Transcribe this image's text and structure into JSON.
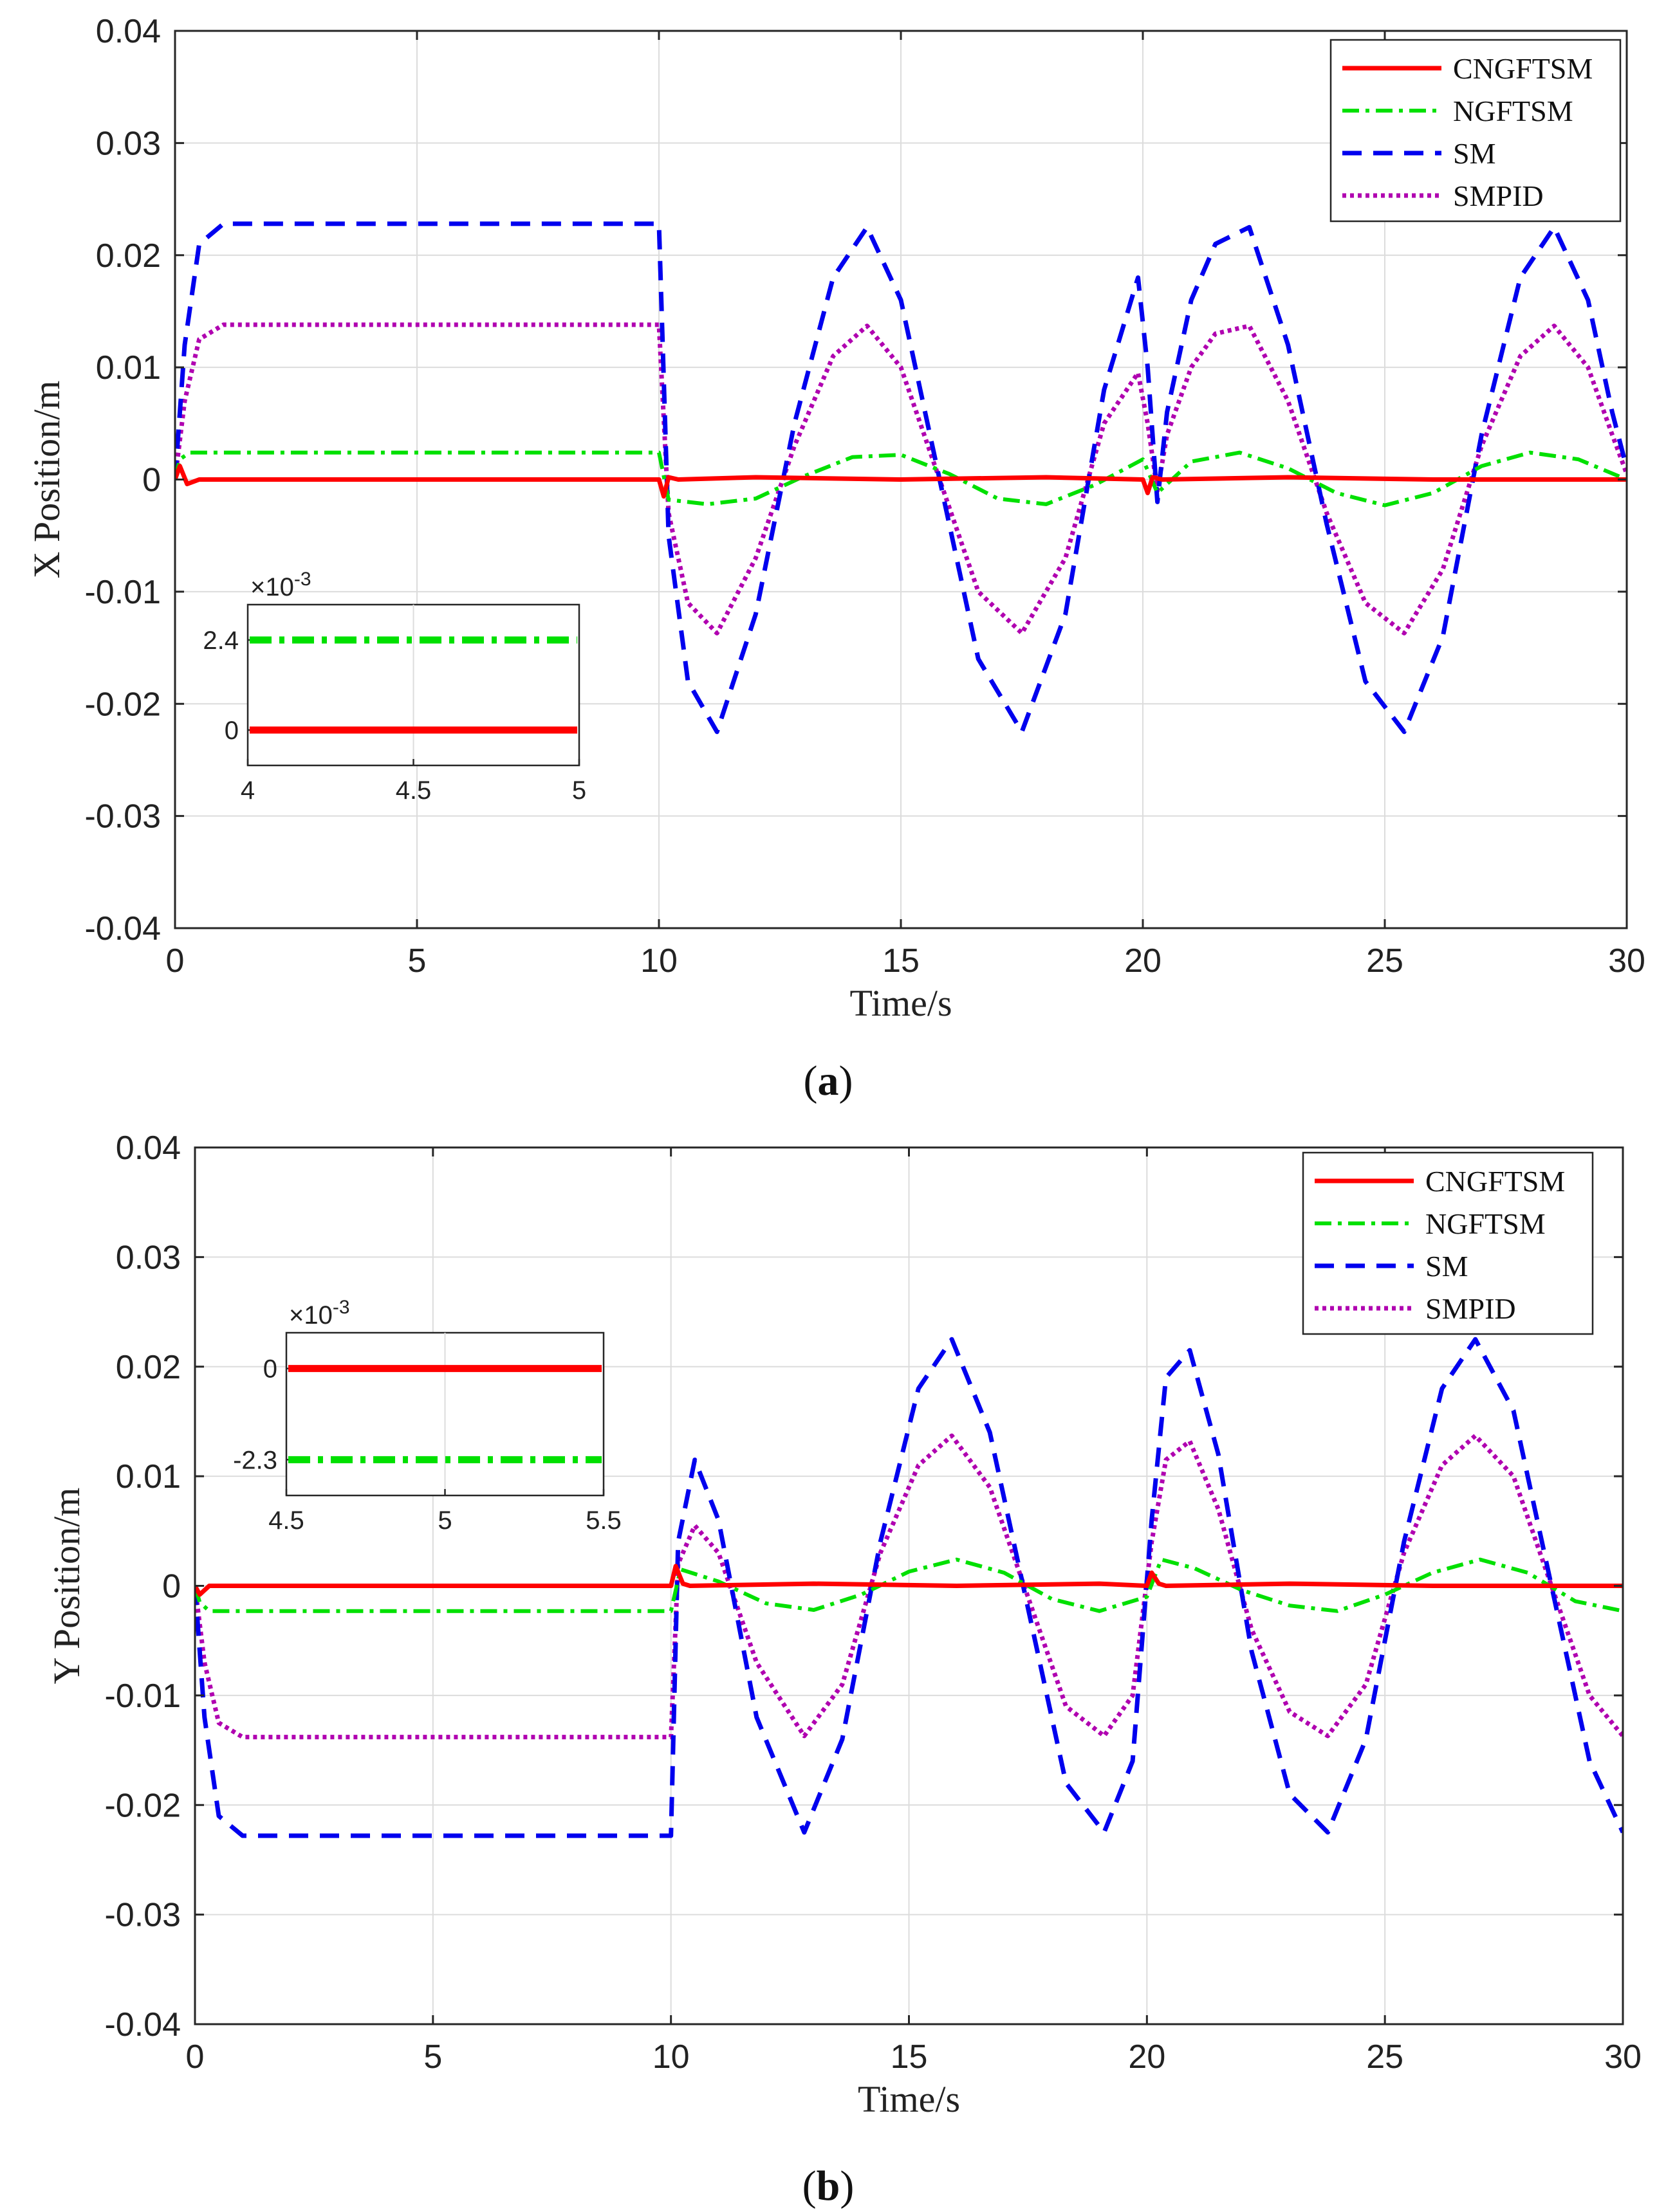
{
  "chart_data": [
    {
      "type": "line",
      "panel_label": "a",
      "xlabel": "Time/s",
      "ylabel": "X Position/m",
      "xlim": [
        0,
        30
      ],
      "ylim": [
        -0.04,
        0.04
      ],
      "xticks": [
        "0",
        "5",
        "10",
        "15",
        "20",
        "25",
        "30"
      ],
      "yticks": [
        "0.04",
        "0.03",
        "0.02",
        "0.01",
        "0",
        "-0.01",
        "-0.02",
        "-0.03",
        "-0.04"
      ],
      "grid": true,
      "legend_position": "top-right",
      "series": [
        {
          "name": "CNGFTSM",
          "color": "#ff0000",
          "style": "solid",
          "x": [
            0,
            0.1,
            0.25,
            0.5,
            10,
            10.1,
            10.2,
            10.4,
            12,
            15,
            18,
            20,
            20.1,
            20.2,
            20.4,
            23,
            26,
            30
          ],
          "y": [
            0,
            0.0012,
            -0.0004,
            0,
            0,
            -0.0015,
            0.0002,
            0,
            0.0002,
            0,
            0.0002,
            0,
            -0.0012,
            0.0002,
            0,
            0.0002,
            0,
            0
          ]
        },
        {
          "name": "NGFTSM",
          "color": "#00e000",
          "style": "dashdot",
          "x": [
            0,
            0.1,
            0.3,
            10,
            10.2,
            11,
            12,
            13,
            14,
            15,
            16,
            17,
            18,
            19,
            20,
            20.3,
            21,
            22,
            23,
            24,
            25,
            26,
            27,
            28,
            29,
            30
          ],
          "y": [
            0,
            0.0018,
            0.0024,
            0.0024,
            -0.0018,
            -0.0022,
            -0.0017,
            0.0003,
            0.002,
            0.0022,
            0.0005,
            -0.0017,
            -0.0022,
            -0.0005,
            0.0018,
            -0.0012,
            0.0016,
            0.0024,
            0.001,
            -0.0012,
            -0.0023,
            -0.0012,
            0.0012,
            0.0024,
            0.0018,
            0
          ]
        },
        {
          "name": "SM",
          "color": "#0000ee",
          "style": "dashed",
          "x": [
            0,
            0.2,
            0.5,
            1,
            10,
            10.2,
            10.6,
            11.2,
            12,
            12.8,
            13.6,
            14.3,
            15,
            15.8,
            16.6,
            17.5,
            18.4,
            19.2,
            19.9,
            20.1,
            20.3,
            20.5,
            21,
            21.5,
            22.2,
            23,
            23.8,
            24.6,
            25.4,
            26.2,
            27,
            27.8,
            28.5,
            29.2,
            29.7,
            30
          ],
          "y": [
            0,
            0.012,
            0.021,
            0.0228,
            0.0228,
            -0.005,
            -0.018,
            -0.0225,
            -0.012,
            0.005,
            0.018,
            0.0225,
            0.016,
            0,
            -0.016,
            -0.0225,
            -0.012,
            0.008,
            0.018,
            0.01,
            -0.002,
            0.006,
            0.016,
            0.021,
            0.0225,
            0.012,
            -0.004,
            -0.018,
            -0.0225,
            -0.014,
            0.004,
            0.018,
            0.0225,
            0.016,
            0.006,
            0.001
          ]
        },
        {
          "name": "SMPID",
          "color": "#b000b0",
          "style": "dotted",
          "x": [
            0,
            0.2,
            0.5,
            1,
            10,
            10.2,
            10.6,
            11.2,
            12,
            12.8,
            13.6,
            14.3,
            15,
            15.8,
            16.6,
            17.5,
            18.4,
            19.2,
            19.9,
            20.1,
            20.3,
            20.5,
            21,
            21.5,
            22.2,
            23,
            23.8,
            24.6,
            25.4,
            26.2,
            27,
            27.8,
            28.5,
            29.2,
            29.7,
            30
          ],
          "y": [
            0,
            0.007,
            0.0125,
            0.0138,
            0.0138,
            -0.003,
            -0.011,
            -0.0137,
            -0.007,
            0.003,
            0.011,
            0.0137,
            0.01,
            0,
            -0.01,
            -0.0137,
            -0.007,
            0.005,
            0.0095,
            0.005,
            -0.001,
            0.004,
            0.01,
            0.013,
            0.0137,
            0.007,
            -0.003,
            -0.011,
            -0.0137,
            -0.008,
            0.003,
            0.011,
            0.0137,
            0.01,
            0.004,
            0.0005
          ]
        }
      ],
      "inset": {
        "xlim": [
          4,
          5
        ],
        "xticks": [
          "4",
          "4.5",
          "5"
        ],
        "yticks": [
          "2.4",
          "0"
        ],
        "multiplier": "×10",
        "exponent": "-3",
        "levels": [
          0,
          2.4
        ],
        "series_values": {
          "CNGFTSM": 0,
          "NGFTSM": 2.4
        }
      }
    },
    {
      "type": "line",
      "panel_label": "b",
      "xlabel": "Time/s",
      "ylabel": "Y Position/m",
      "xlim": [
        0,
        30
      ],
      "ylim": [
        -0.04,
        0.04
      ],
      "xticks": [
        "0",
        "5",
        "10",
        "15",
        "20",
        "25",
        "30"
      ],
      "yticks": [
        "0.04",
        "0.03",
        "0.02",
        "0.01",
        "0",
        "-0.01",
        "-0.02",
        "-0.03",
        "-0.04"
      ],
      "grid": true,
      "legend_position": "top-right",
      "series": [
        {
          "name": "CNGFTSM",
          "color": "#ff0000",
          "style": "solid",
          "x": [
            0,
            0.1,
            0.3,
            10,
            10.1,
            10.25,
            10.4,
            13,
            16,
            19,
            20,
            20.1,
            20.25,
            20.4,
            23,
            26,
            30
          ],
          "y": [
            0,
            -0.0008,
            0,
            0,
            0.0018,
            0.0002,
            0,
            0.0002,
            0,
            0.0002,
            0,
            0.0012,
            0.0002,
            0,
            0.0002,
            0,
            0
          ]
        },
        {
          "name": "NGFTSM",
          "color": "#00e000",
          "style": "dashdot",
          "x": [
            0,
            0.1,
            0.3,
            10,
            10.2,
            11,
            12,
            13,
            14,
            15,
            16,
            17,
            18,
            19,
            20,
            20.3,
            21,
            22,
            23,
            24,
            25,
            26,
            27,
            28,
            29,
            30
          ],
          "y": [
            0,
            -0.0015,
            -0.0023,
            -0.0023,
            0.0015,
            0.0004,
            -0.0016,
            -0.0022,
            -0.0008,
            0.0013,
            0.0024,
            0.0012,
            -0.0012,
            -0.0023,
            -0.001,
            0.0024,
            0.0016,
            -0.0004,
            -0.0018,
            -0.0023,
            -0.0008,
            0.0012,
            0.0024,
            0.0012,
            -0.0014,
            -0.0023
          ]
        },
        {
          "name": "SM",
          "color": "#0000ee",
          "style": "dashed",
          "x": [
            0,
            0.2,
            0.5,
            1,
            10,
            10.15,
            10.5,
            11,
            11.8,
            12.8,
            13.6,
            14.4,
            15.2,
            15.9,
            16.7,
            17.5,
            18.3,
            19.1,
            19.7,
            20.1,
            20.4,
            20.9,
            21.5,
            22.2,
            23,
            23.8,
            24.6,
            25.4,
            26.2,
            26.9,
            27.7,
            28.5,
            29.3,
            30
          ],
          "y": [
            0,
            -0.012,
            -0.021,
            -0.0228,
            -0.0228,
            0.004,
            0.0115,
            0.006,
            -0.012,
            -0.0225,
            -0.014,
            0.004,
            0.018,
            0.0225,
            0.014,
            -0.002,
            -0.018,
            -0.0225,
            -0.016,
            0.006,
            0.019,
            0.0215,
            0.012,
            -0.006,
            -0.019,
            -0.0225,
            -0.014,
            0.004,
            0.018,
            0.0225,
            0.016,
            0,
            -0.016,
            -0.0225
          ]
        },
        {
          "name": "SMPID",
          "color": "#b000b0",
          "style": "dotted",
          "x": [
            0,
            0.2,
            0.5,
            1,
            10,
            10.15,
            10.5,
            11,
            11.8,
            12.8,
            13.6,
            14.4,
            15.2,
            15.9,
            16.7,
            17.5,
            18.3,
            19.1,
            19.7,
            20.1,
            20.4,
            20.9,
            21.5,
            22.2,
            23,
            23.8,
            24.6,
            25.4,
            26.2,
            26.9,
            27.7,
            28.5,
            29.3,
            30
          ],
          "y": [
            0,
            -0.007,
            -0.0125,
            -0.0138,
            -0.0138,
            0.002,
            0.0055,
            0.003,
            -0.007,
            -0.0137,
            -0.009,
            0.003,
            0.011,
            0.0137,
            0.009,
            -0.001,
            -0.011,
            -0.0137,
            -0.01,
            0.004,
            0.0115,
            0.0132,
            0.007,
            -0.004,
            -0.0115,
            -0.0137,
            -0.009,
            0.003,
            0.011,
            0.0137,
            0.01,
            0,
            -0.01,
            -0.0137
          ]
        }
      ],
      "inset": {
        "xlim": [
          4.5,
          5.5
        ],
        "xticks": [
          "4.5",
          "5",
          "5.5"
        ],
        "yticks": [
          "0",
          "-2.3"
        ],
        "multiplier": "×10",
        "exponent": "-3",
        "levels": [
          0,
          -2.3
        ],
        "series_values": {
          "CNGFTSM": 0,
          "NGFTSM": -2.3
        }
      }
    }
  ]
}
